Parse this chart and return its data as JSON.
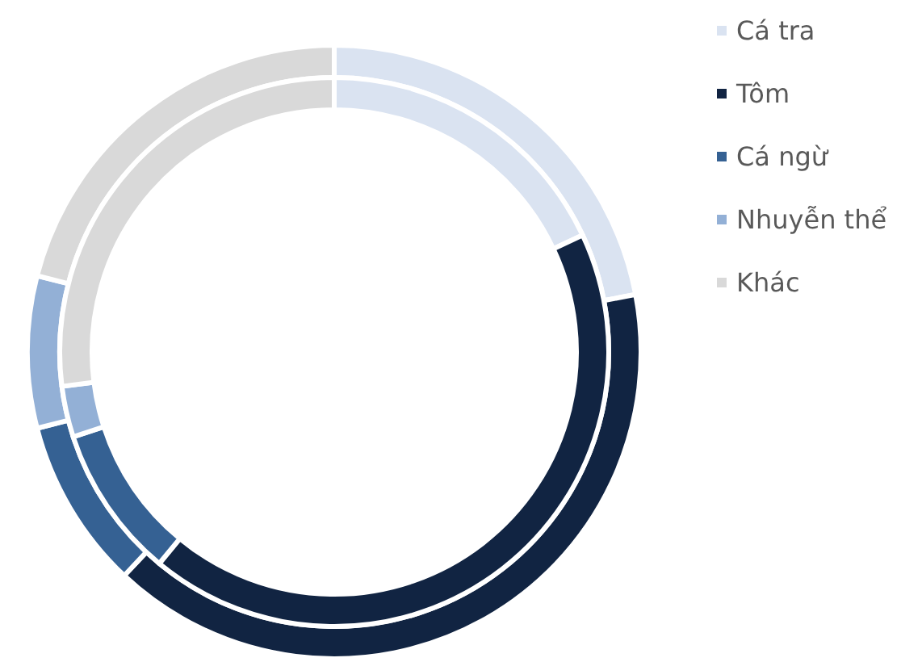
{
  "chart_data": {
    "type": "donut",
    "categories": [
      "Cá tra",
      "Tôm",
      "Cá ngừ",
      "Nhuyễn thể",
      "Khác"
    ],
    "colors": [
      "#dae3f1",
      "#112442",
      "#356193",
      "#93b0d6",
      "#d9d9d9"
    ],
    "series": [
      {
        "values": [
          22,
          40,
          9,
          8,
          21
        ]
      },
      {
        "values": [
          18,
          43,
          9,
          3,
          27
        ]
      }
    ],
    "legend": "top right"
  }
}
